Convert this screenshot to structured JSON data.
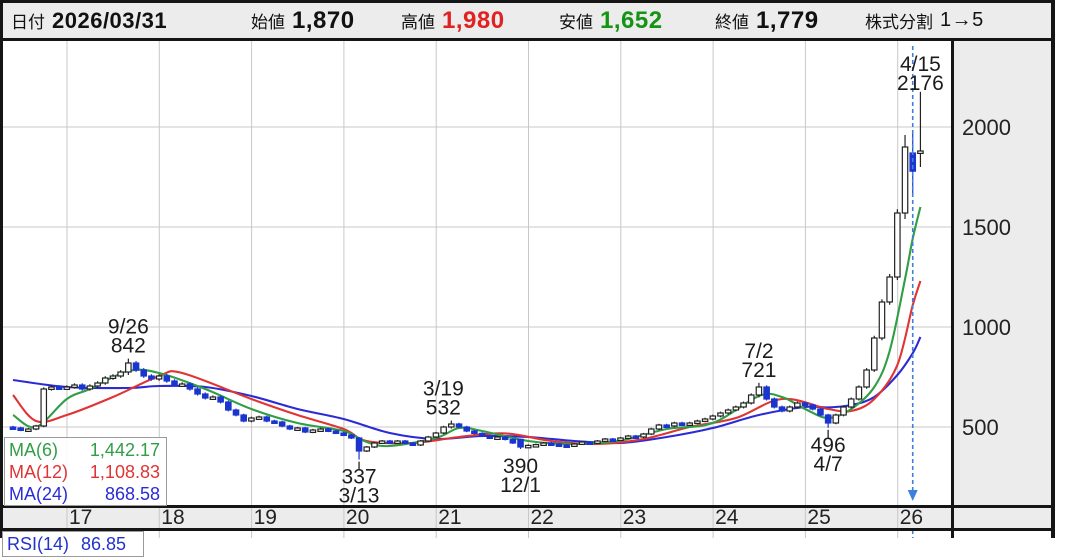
{
  "header": {
    "date_label": "日付",
    "date_value": "2026/03/31",
    "open_label": "始値",
    "open_value": "1,870",
    "high_label": "高値",
    "high_value": "1,980",
    "low_label": "安値",
    "low_value": "1,652",
    "close_label": "終値",
    "close_value": "1,779",
    "split_label": "株式分割",
    "split_value": "1→5"
  },
  "colors": {
    "high_red": "#e02222",
    "low_green": "#149314",
    "ma6_green": "#2f9e44",
    "ma12_red": "#e03434",
    "ma24_blue": "#2b2bd6",
    "candle_up_fill": "#ffffff",
    "candle_up_stroke": "#222222",
    "candle_down": "#1b35cf",
    "marker_blue": "#3f7fe0",
    "grid_grey": "#c8c8c8",
    "panel_grey": "#ececec",
    "border_black": "#151515",
    "rsi_blue": "#2233cc",
    "text_dark": "#1c1c1c"
  },
  "ma_legend": {
    "rows": [
      {
        "label": "MA(6)",
        "value": "1,442.17",
        "color": "#2f9e44"
      },
      {
        "label": "MA(12)",
        "value": "1,108.83",
        "color": "#e03434"
      },
      {
        "label": "MA(24)",
        "value": "868.58",
        "color": "#2b2bd6"
      }
    ]
  },
  "rsi_panel": {
    "label": "RSI(14)",
    "value": "86.85"
  },
  "chart_data": {
    "type": "candlestick",
    "interval": "monthly",
    "x_ticks": [
      17,
      18,
      19,
      20,
      21,
      22,
      23,
      24,
      25,
      26
    ],
    "y_ticks": [
      500,
      1000,
      1500,
      2000
    ],
    "y_range": [
      100,
      2425
    ],
    "grid": true,
    "start_month": "2016-06",
    "latest_bar": {
      "date": "2026/03/31",
      "open": 1870,
      "high": 1980,
      "low": 1652,
      "close": 1779
    },
    "closes": [
      495,
      485,
      490,
      505,
      690,
      700,
      695,
      700,
      710,
      690,
      705,
      720,
      745,
      755,
      775,
      820,
      785,
      755,
      740,
      755,
      730,
      710,
      715,
      690,
      665,
      645,
      650,
      625,
      585,
      560,
      530,
      545,
      550,
      530,
      525,
      505,
      490,
      495,
      475,
      485,
      490,
      480,
      470,
      460,
      445,
      380,
      400,
      420,
      430,
      420,
      430,
      420,
      410,
      430,
      450,
      470,
      500,
      515,
      500,
      480,
      468,
      455,
      445,
      450,
      438,
      420,
      400,
      408,
      412,
      420,
      415,
      410,
      405,
      415,
      425,
      420,
      430,
      440,
      435,
      445,
      455,
      450,
      465,
      490,
      510,
      505,
      520,
      512,
      520,
      530,
      540,
      555,
      570,
      585,
      600,
      620,
      660,
      700,
      640,
      600,
      580,
      600,
      620,
      610,
      590,
      560,
      520,
      560,
      600,
      640,
      700,
      785,
      945,
      1125,
      1250,
      1570,
      1900,
      1779,
      1880
    ],
    "special_candles": {
      "15": [
        775,
        842,
        760,
        820
      ],
      "45": [
        445,
        450,
        337,
        380
      ],
      "57": [
        500,
        532,
        492,
        515
      ],
      "66": [
        438,
        442,
        390,
        400
      ],
      "97": [
        660,
        721,
        648,
        700
      ],
      "106": [
        560,
        566,
        496,
        520
      ],
      "116": [
        1570,
        1960,
        1540,
        1900
      ],
      "117": [
        1870,
        1980,
        1652,
        1779
      ],
      "118": [
        1870,
        2176,
        1800,
        1880
      ]
    },
    "annotations": [
      {
        "m": 15,
        "v": 842,
        "pos": "above",
        "lines": [
          "9/26",
          "842"
        ]
      },
      {
        "m": 45,
        "v": 337,
        "pos": "below",
        "lines": [
          "337",
          "3/13"
        ],
        "leader": 8
      },
      {
        "m": 57,
        "v": 532,
        "pos": "above",
        "lines": [
          "3/19",
          "532"
        ],
        "dx": -8
      },
      {
        "m": 66,
        "v": 390,
        "pos": "below",
        "lines": [
          "390",
          "12/1"
        ],
        "dy": 8
      },
      {
        "m": 97,
        "v": 721,
        "pos": "above",
        "lines": [
          "7/2",
          "721"
        ]
      },
      {
        "m": 106,
        "v": 496,
        "pos": "below",
        "lines": [
          "496",
          "4/7"
        ],
        "leader": 8
      },
      {
        "m": 118,
        "v": 2176,
        "pos": "above",
        "lines": [
          "4/15",
          "2176"
        ],
        "dy": 4
      }
    ],
    "dashed_marker": {
      "m": 117,
      "color": "#3f7fe0"
    },
    "ma_lines": [
      {
        "name": "MA(24)",
        "color": "#2b2bd6",
        "points": [
          [
            0,
            735
          ],
          [
            7,
            700
          ],
          [
            15,
            695
          ],
          [
            19,
            705
          ],
          [
            25,
            700
          ],
          [
            31,
            655
          ],
          [
            37,
            590
          ],
          [
            43,
            540
          ],
          [
            49,
            470
          ],
          [
            55,
            440
          ],
          [
            61,
            455
          ],
          [
            67,
            450
          ],
          [
            73,
            430
          ],
          [
            79,
            420
          ],
          [
            85,
            450
          ],
          [
            91,
            495
          ],
          [
            97,
            560
          ],
          [
            103,
            600
          ],
          [
            106,
            598
          ],
          [
            109,
            610
          ],
          [
            112,
            650
          ],
          [
            115,
            760
          ],
          [
            117,
            869
          ],
          [
            118,
            950
          ]
        ]
      },
      {
        "name": "MA(12)",
        "color": "#e03434",
        "points": [
          [
            0,
            660
          ],
          [
            3,
            530
          ],
          [
            7,
            560
          ],
          [
            13,
            650
          ],
          [
            19,
            755
          ],
          [
            22,
            770
          ],
          [
            31,
            640
          ],
          [
            37,
            560
          ],
          [
            43,
            490
          ],
          [
            46,
            430
          ],
          [
            52,
            420
          ],
          [
            58,
            450
          ],
          [
            64,
            468
          ],
          [
            70,
            430
          ],
          [
            76,
            415
          ],
          [
            82,
            440
          ],
          [
            88,
            500
          ],
          [
            94,
            545
          ],
          [
            100,
            640
          ],
          [
            106,
            590
          ],
          [
            109,
            580
          ],
          [
            112,
            640
          ],
          [
            115,
            810
          ],
          [
            117,
            1109
          ],
          [
            118,
            1230
          ]
        ]
      },
      {
        "name": "MA(6)",
        "color": "#2f9e44",
        "points": [
          [
            0,
            560
          ],
          [
            3,
            500
          ],
          [
            7,
            640
          ],
          [
            10,
            690
          ],
          [
            15,
            780
          ],
          [
            19,
            770
          ],
          [
            25,
            690
          ],
          [
            31,
            590
          ],
          [
            37,
            520
          ],
          [
            43,
            480
          ],
          [
            46,
            425
          ],
          [
            49,
            405
          ],
          [
            55,
            445
          ],
          [
            58,
            495
          ],
          [
            61,
            480
          ],
          [
            67,
            430
          ],
          [
            73,
            415
          ],
          [
            79,
            432
          ],
          [
            85,
            490
          ],
          [
            91,
            520
          ],
          [
            97,
            655
          ],
          [
            100,
            650
          ],
          [
            103,
            590
          ],
          [
            106,
            545
          ],
          [
            109,
            590
          ],
          [
            112,
            700
          ],
          [
            114,
            880
          ],
          [
            116,
            1240
          ],
          [
            117,
            1442
          ],
          [
            118,
            1600
          ]
        ]
      }
    ]
  }
}
